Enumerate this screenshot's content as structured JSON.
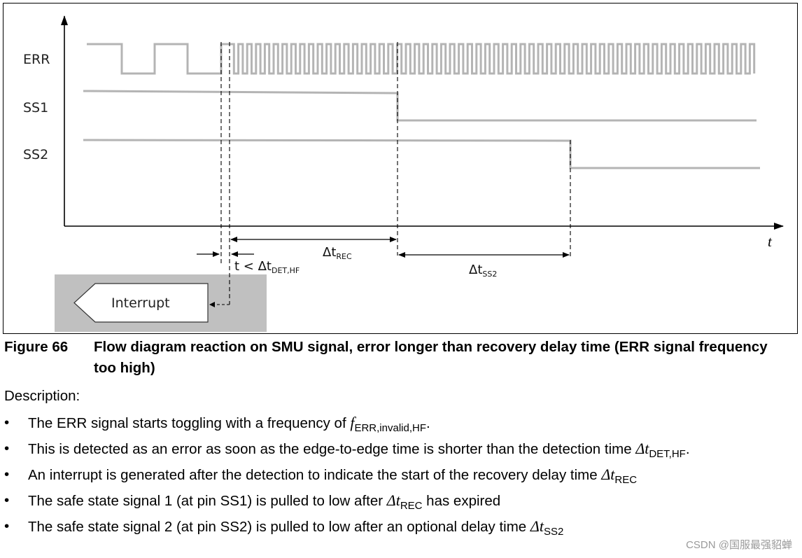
{
  "figure": {
    "signals": [
      "ERR",
      "SS1",
      "SS2"
    ],
    "time_axis_label": "t",
    "dim_rec": {
      "base": "Δt",
      "sub": "REC"
    },
    "dim_ss2": {
      "base": "Δt",
      "sub": "SS2"
    },
    "dim_det": {
      "base": "t < Δt",
      "sub": "DET,HF"
    },
    "interrupt_label": "Interrupt",
    "colors": {
      "signal": "#b4b4b4",
      "interrupt_box": "#c0c0c0",
      "axis": "#000000"
    }
  },
  "caption": {
    "number": "Figure 66",
    "title": "Flow diagram reaction on SMU signal, error longer than recovery delay time (ERR signal frequency too high)"
  },
  "description": {
    "heading": "Description:",
    "bullet_char": "•",
    "bullets": [
      {
        "text": "The ERR signal starts toggling with a frequency of ",
        "sym": "f",
        "sub": "ERR,invalid,HF",
        "tail": "."
      },
      {
        "text": "This is detected as an error as soon as the edge-to-edge time is shorter than the detection time ",
        "sym": "Δt",
        "sub": "DET,HF",
        "tail": "."
      },
      {
        "text": "An interrupt is generated after the detection to indicate the start of the recovery delay time ",
        "sym": "Δt",
        "sub": "REC",
        "tail": ""
      },
      {
        "text": "The safe state signal 1 (at pin SS1) is pulled to low after ",
        "sym": "Δt",
        "sub": "REC",
        "tail": " has expired"
      },
      {
        "text": "The safe state signal 2 (at pin SS2) is pulled to low after an optional delay time ",
        "sym": "Δt",
        "sub": "SS2",
        "tail": ""
      }
    ]
  },
  "watermark": "CSDN @国服最强貂蝉"
}
